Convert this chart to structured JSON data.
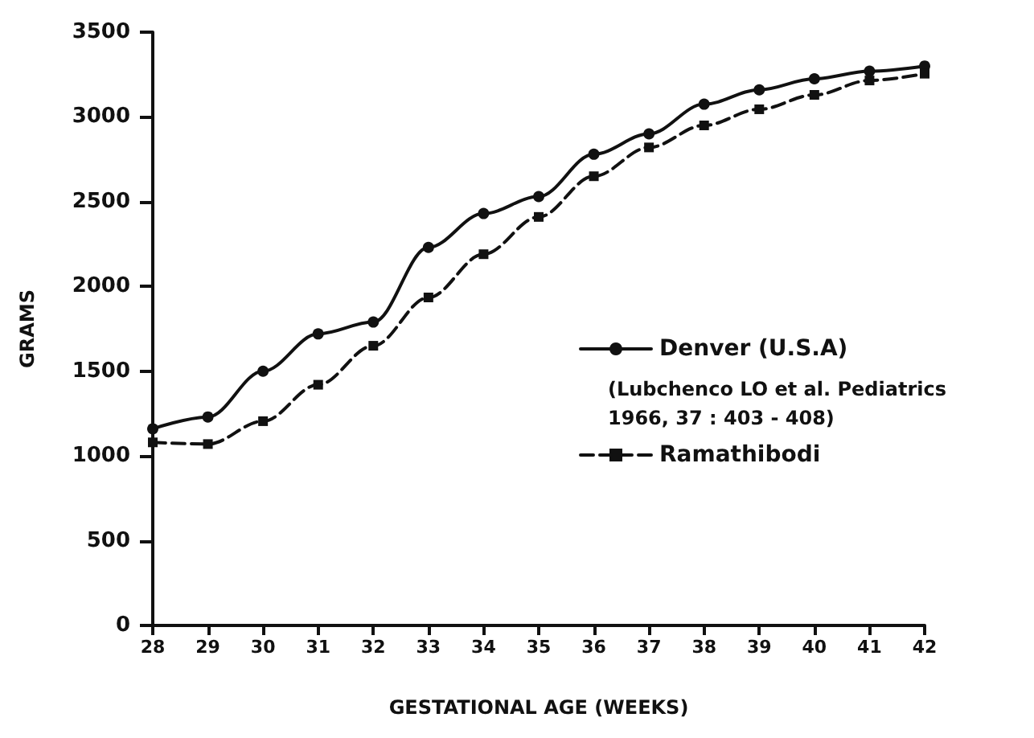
{
  "chart_data": {
    "type": "line",
    "xlabel": "GESTATIONAL AGE (WEEKS)",
    "ylabel": "GRAMS",
    "categories": [
      "28",
      "29",
      "30",
      "31",
      "32",
      "33",
      "34",
      "35",
      "36",
      "37",
      "38",
      "39",
      "40",
      "41",
      "42"
    ],
    "series": [
      {
        "name": "Denver (U.S.A)",
        "color": "#111111",
        "marker": "circle",
        "line_style": "solid",
        "values": [
          1160,
          1230,
          1500,
          1720,
          1790,
          2230,
          2430,
          2530,
          2780,
          2900,
          3075,
          3160,
          3225,
          3270,
          3300
        ]
      },
      {
        "name": "Ramathibodi",
        "color": "#111111",
        "marker": "square",
        "line_style": "dashed",
        "values": [
          1080,
          1070,
          1205,
          1420,
          1650,
          1935,
          2190,
          2410,
          2650,
          2820,
          2950,
          3045,
          3130,
          3215,
          3255
        ]
      }
    ],
    "annotations": [
      "(Lubchenco LO et al. Pediatrics\n1966, 37 : 403 - 408)"
    ],
    "ylim": [
      0,
      3500
    ],
    "yticks": [
      0,
      500,
      1000,
      1500,
      2000,
      2500,
      3000,
      3500
    ],
    "grid": false,
    "legend": "right"
  }
}
